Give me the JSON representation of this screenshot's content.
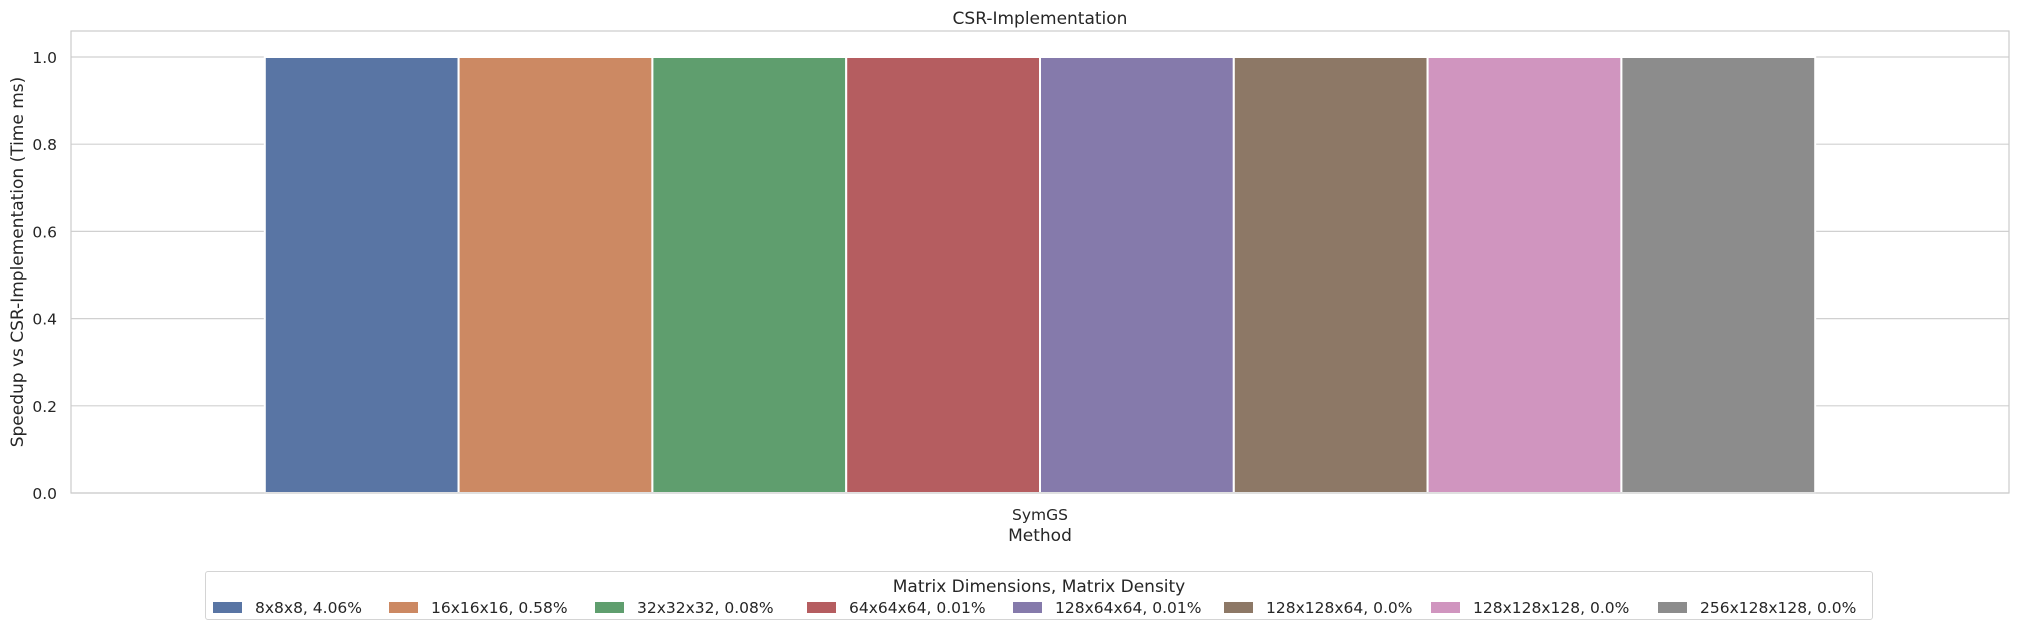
{
  "chart_data": {
    "type": "bar",
    "title": "CSR-Implementation",
    "xlabel": "Method",
    "ylabel": "Speedup vs CSR-Implementation (Time ms)",
    "categories": [
      "SymGS"
    ],
    "ylim": [
      0,
      1.0
    ],
    "yticks": [
      "0.0",
      "0.2",
      "0.4",
      "0.6",
      "0.8",
      "1.0"
    ],
    "grid": true,
    "legend_placement": "bottom-center",
    "legend_title": "Matrix Dimensions, Matrix Density",
    "series": [
      {
        "name": "8x8x8, 4.06%",
        "values": [
          1.0
        ],
        "color": "#5975a4"
      },
      {
        "name": "16x16x16, 0.58%",
        "values": [
          1.0
        ],
        "color": "#cc8963"
      },
      {
        "name": "32x32x32, 0.08%",
        "values": [
          1.0
        ],
        "color": "#5f9e6e"
      },
      {
        "name": "64x64x64, 0.01%",
        "values": [
          1.0
        ],
        "color": "#b55d60"
      },
      {
        "name": "128x64x64, 0.01%",
        "values": [
          1.0
        ],
        "color": "#857aab"
      },
      {
        "name": "128x128x64, 0.0%",
        "values": [
          1.0
        ],
        "color": "#8d7866"
      },
      {
        "name": "128x128x128, 0.0%",
        "values": [
          1.0
        ],
        "color": "#d095bf"
      },
      {
        "name": "256x128x128, 0.0%",
        "values": [
          1.0
        ],
        "color": "#8c8c8c"
      }
    ]
  }
}
